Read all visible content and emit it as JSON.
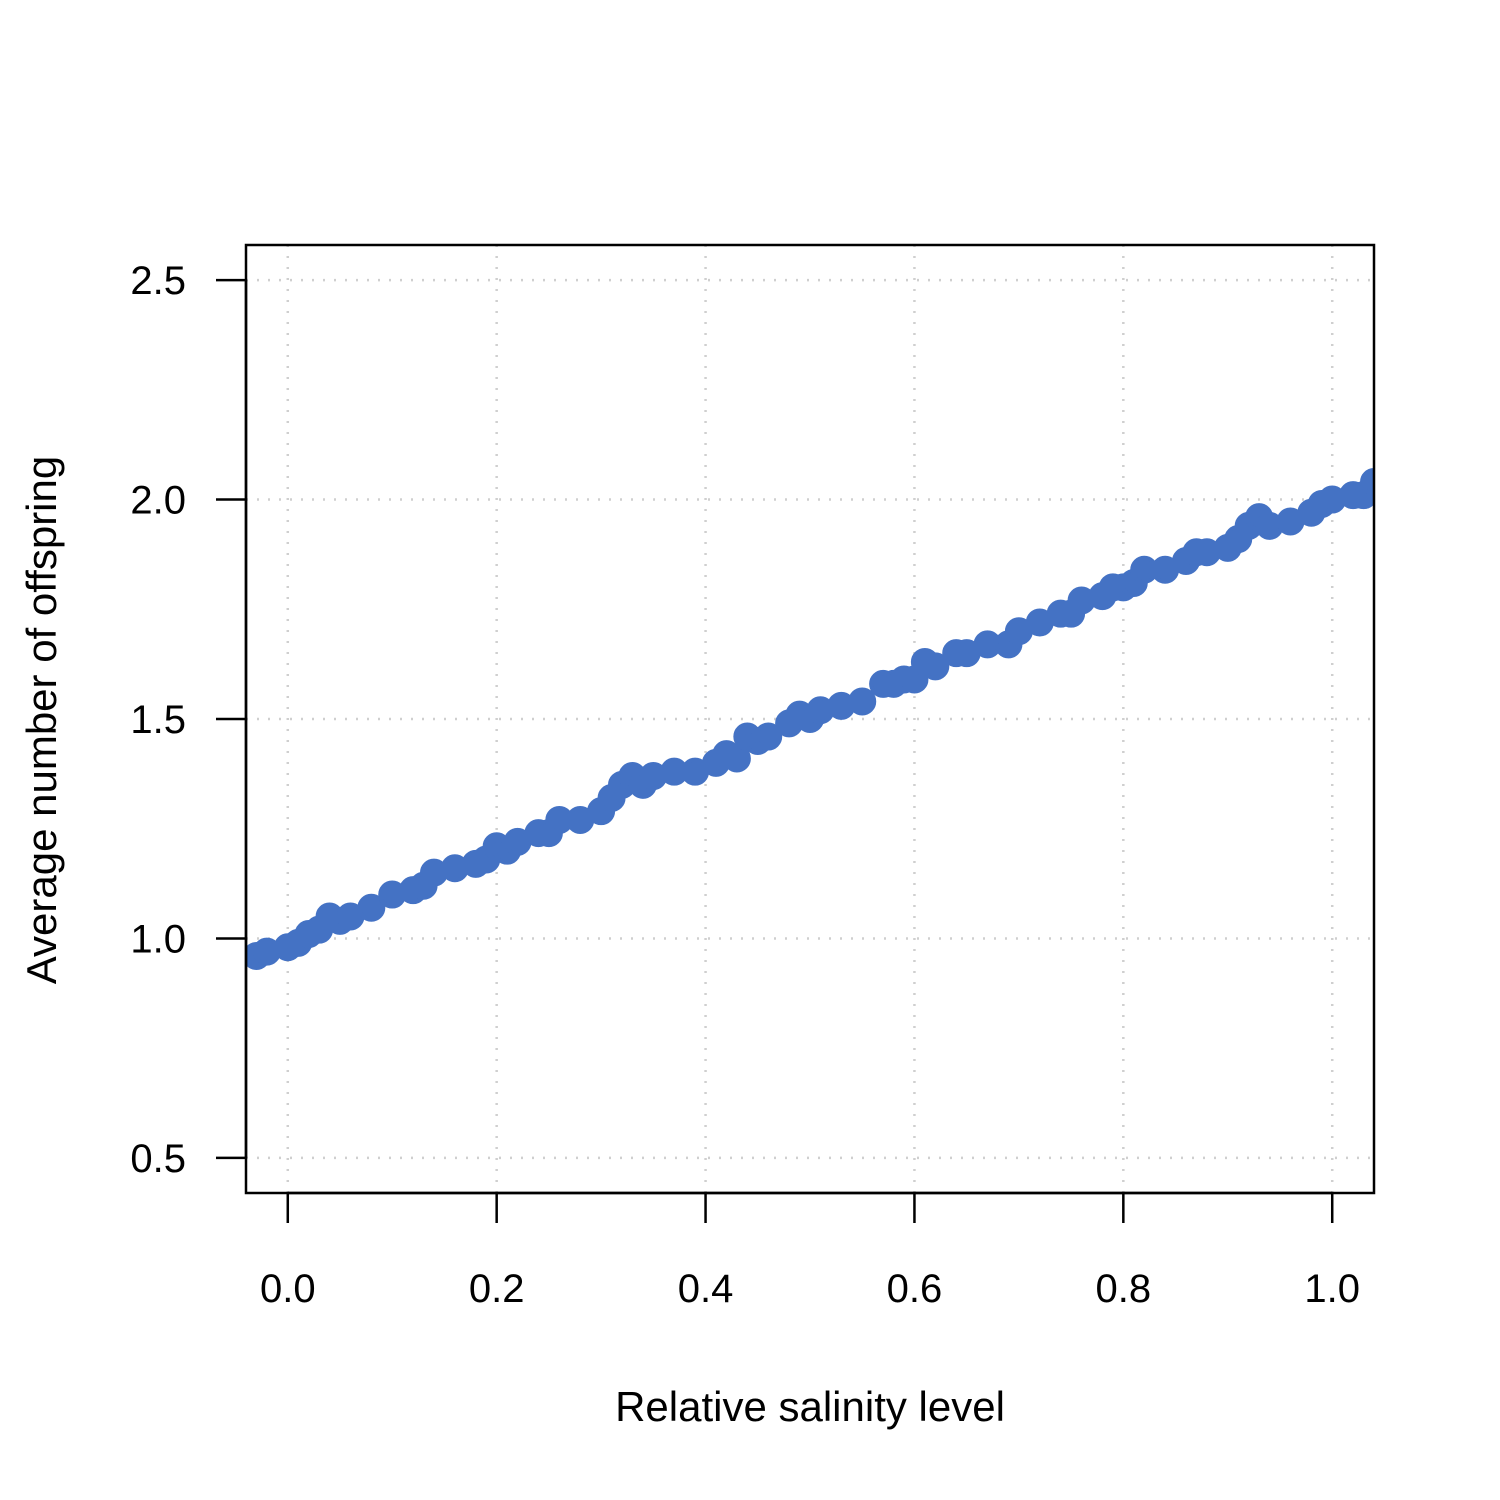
{
  "chart_data": {
    "type": "scatter",
    "title": "",
    "xlabel": "Relative salinity level",
    "ylabel": "Average number of offspring",
    "xlim": [
      -0.04,
      1.04
    ],
    "ylim": [
      0.42,
      2.58
    ],
    "x_ticks": [
      0.0,
      0.2,
      0.4,
      0.6,
      0.8,
      1.0
    ],
    "x_tick_labels": [
      "0.0",
      "0.2",
      "0.4",
      "0.6",
      "0.8",
      "1.0"
    ],
    "y_ticks": [
      0.5,
      1.0,
      1.5,
      2.0,
      2.5
    ],
    "y_tick_labels": [
      "0.5",
      "1.0",
      "1.5",
      "2.0",
      "2.5"
    ],
    "grid": true,
    "series": [
      {
        "color": "#4472C4",
        "points": [
          [
            -0.03,
            0.96
          ],
          [
            -0.02,
            0.97
          ],
          [
            0.0,
            0.98
          ],
          [
            0.01,
            0.99
          ],
          [
            0.02,
            1.01
          ],
          [
            0.03,
            1.02
          ],
          [
            0.04,
            1.05
          ],
          [
            0.05,
            1.04
          ],
          [
            0.06,
            1.05
          ],
          [
            0.08,
            1.07
          ],
          [
            0.1,
            1.1
          ],
          [
            0.12,
            1.11
          ],
          [
            0.13,
            1.12
          ],
          [
            0.14,
            1.15
          ],
          [
            0.16,
            1.16
          ],
          [
            0.18,
            1.17
          ],
          [
            0.19,
            1.18
          ],
          [
            0.2,
            1.21
          ],
          [
            0.21,
            1.2
          ],
          [
            0.22,
            1.22
          ],
          [
            0.24,
            1.24
          ],
          [
            0.25,
            1.24
          ],
          [
            0.26,
            1.27
          ],
          [
            0.28,
            1.27
          ],
          [
            0.3,
            1.29
          ],
          [
            0.31,
            1.32
          ],
          [
            0.32,
            1.35
          ],
          [
            0.33,
            1.37
          ],
          [
            0.34,
            1.35
          ],
          [
            0.35,
            1.37
          ],
          [
            0.37,
            1.38
          ],
          [
            0.39,
            1.38
          ],
          [
            0.41,
            1.4
          ],
          [
            0.42,
            1.42
          ],
          [
            0.43,
            1.41
          ],
          [
            0.44,
            1.46
          ],
          [
            0.45,
            1.45
          ],
          [
            0.46,
            1.46
          ],
          [
            0.48,
            1.49
          ],
          [
            0.49,
            1.51
          ],
          [
            0.5,
            1.5
          ],
          [
            0.51,
            1.52
          ],
          [
            0.53,
            1.53
          ],
          [
            0.55,
            1.54
          ],
          [
            0.57,
            1.58
          ],
          [
            0.58,
            1.58
          ],
          [
            0.59,
            1.59
          ],
          [
            0.6,
            1.59
          ],
          [
            0.61,
            1.63
          ],
          [
            0.62,
            1.62
          ],
          [
            0.64,
            1.65
          ],
          [
            0.65,
            1.65
          ],
          [
            0.67,
            1.67
          ],
          [
            0.69,
            1.67
          ],
          [
            0.7,
            1.7
          ],
          [
            0.72,
            1.72
          ],
          [
            0.74,
            1.74
          ],
          [
            0.75,
            1.74
          ],
          [
            0.76,
            1.77
          ],
          [
            0.78,
            1.78
          ],
          [
            0.79,
            1.8
          ],
          [
            0.8,
            1.8
          ],
          [
            0.81,
            1.81
          ],
          [
            0.82,
            1.84
          ],
          [
            0.84,
            1.84
          ],
          [
            0.86,
            1.86
          ],
          [
            0.87,
            1.88
          ],
          [
            0.88,
            1.88
          ],
          [
            0.9,
            1.89
          ],
          [
            0.91,
            1.91
          ],
          [
            0.92,
            1.94
          ],
          [
            0.93,
            1.96
          ],
          [
            0.94,
            1.94
          ],
          [
            0.96,
            1.95
          ],
          [
            0.98,
            1.97
          ],
          [
            0.99,
            1.99
          ],
          [
            1.0,
            2.0
          ],
          [
            1.02,
            2.01
          ],
          [
            1.03,
            2.01
          ],
          [
            1.04,
            2.04
          ]
        ]
      }
    ]
  }
}
